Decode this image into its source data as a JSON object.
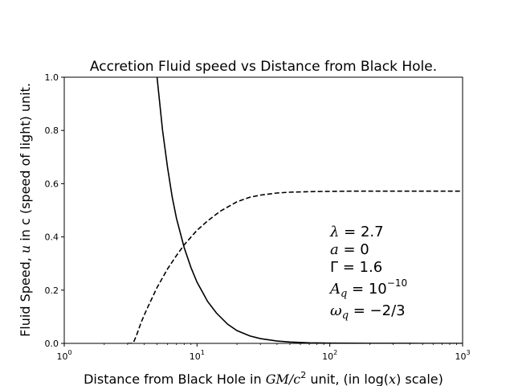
{
  "chart_data": {
    "type": "line",
    "title": "Accretion Fluid speed vs Distance from Black Hole.",
    "xlabel_prefix": "Distance from Black Hole in ",
    "xlabel_math": "GM/c",
    "xlabel_exp": "2",
    "xlabel_mid": " unit, (in log(",
    "xlabel_var": "x",
    "xlabel_suffix": ") scale)",
    "ylabel_prefix": "Fluid Speed, ",
    "ylabel_var": "u",
    "ylabel_suffix": " in c (speed of light) unit.",
    "x_scale": "log",
    "xlim": [
      1,
      1000
    ],
    "ylim": [
      0.0,
      1.0
    ],
    "x_ticks": [
      {
        "value": 1,
        "base": "10",
        "exp": "0"
      },
      {
        "value": 10,
        "base": "10",
        "exp": "1"
      },
      {
        "value": 100,
        "base": "10",
        "exp": "2"
      },
      {
        "value": 1000,
        "base": "10",
        "exp": "3"
      }
    ],
    "y_ticks": [
      {
        "value": 0.0,
        "label": "0.0"
      },
      {
        "value": 0.2,
        "label": "0.2"
      },
      {
        "value": 0.4,
        "label": "0.4"
      },
      {
        "value": 0.6,
        "label": "0.6"
      },
      {
        "value": 0.8,
        "label": "0.8"
      },
      {
        "value": 1.0,
        "label": "1.0"
      }
    ],
    "grid": false,
    "series": [
      {
        "style": "solid",
        "color": "#000000",
        "x": [
          5.0,
          5.5,
          6,
          6.5,
          7,
          8,
          9,
          10,
          12,
          14,
          17,
          20,
          25,
          30,
          40,
          50,
          70,
          100,
          150,
          200,
          300,
          500,
          700,
          1000
        ],
        "y": [
          1.0,
          0.8,
          0.66,
          0.55,
          0.47,
          0.36,
          0.285,
          0.23,
          0.158,
          0.114,
          0.072,
          0.048,
          0.028,
          0.018,
          0.009,
          0.005,
          0.002,
          0.001,
          0.0005,
          0.0003,
          0.0001,
          0.0,
          0.0,
          0.0
        ]
      },
      {
        "style": "dashed",
        "color": "#000000",
        "x": [
          3.0,
          3.3,
          3.5,
          3.8,
          4.2,
          5,
          6,
          7,
          8,
          10,
          12,
          15,
          20,
          25,
          30,
          40,
          50,
          70,
          100,
          150,
          200,
          300,
          500,
          700,
          1000
        ],
        "y": [
          0.0,
          0.0,
          0.03,
          0.08,
          0.13,
          0.21,
          0.28,
          0.33,
          0.37,
          0.425,
          0.46,
          0.497,
          0.532,
          0.549,
          0.557,
          0.565,
          0.568,
          0.57,
          0.571,
          0.572,
          0.572,
          0.572,
          0.572,
          0.572,
          0.572
        ]
      }
    ],
    "annotations": {
      "lambda": {
        "sym": "λ",
        "rest": " = 2.7"
      },
      "a": {
        "sym": "a",
        "rest": " = 0"
      },
      "gamma": {
        "sym": "Γ",
        "rest": " = 1.6"
      },
      "aq": {
        "sym": "A",
        "sub": "q",
        "rest": " = 10",
        "sup": "−10"
      },
      "omega": {
        "sym": "ω",
        "sub": "q",
        "rest": " = −2/3"
      }
    }
  }
}
